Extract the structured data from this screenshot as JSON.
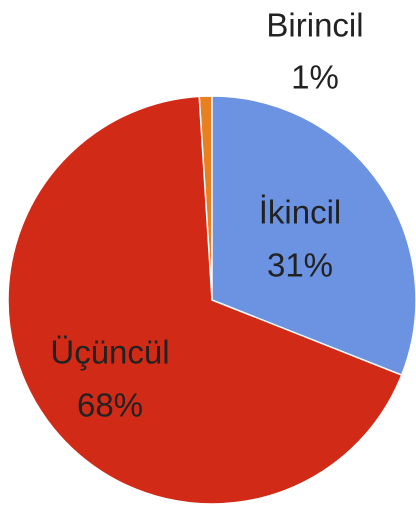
{
  "chart_data": {
    "type": "pie",
    "categories": [
      "Birincil",
      "İkincil",
      "Üçüncül"
    ],
    "values": [
      1,
      31,
      68
    ],
    "value_labels": [
      "1%",
      "31%",
      "68%"
    ],
    "colors": [
      "#e8801f",
      "#6b93e2",
      "#d12a17"
    ]
  }
}
